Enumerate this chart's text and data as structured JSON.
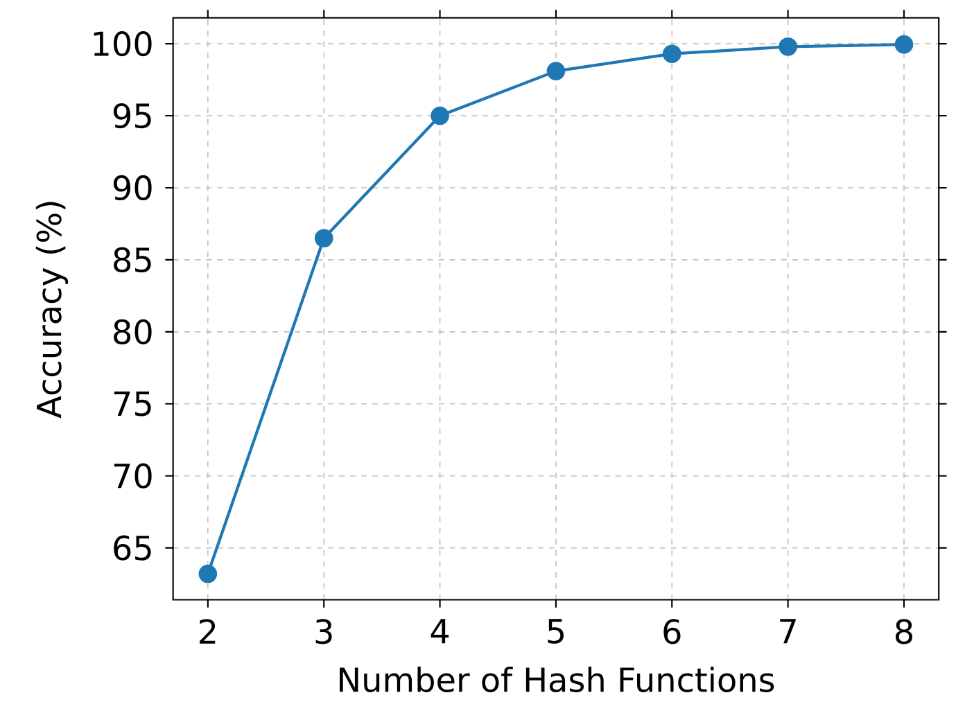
{
  "chart_data": {
    "type": "line",
    "xlabel": "Number of Hash Functions",
    "ylabel": "Accuracy (%)",
    "x": [
      2,
      3,
      4,
      5,
      6,
      7,
      8
    ],
    "series": [
      {
        "color": "#1f77b4",
        "values": [
          63.2,
          86.5,
          95.0,
          98.1,
          99.3,
          99.8,
          99.95
        ]
      }
    ],
    "xlim": [
      1.7,
      8.3
    ],
    "ylim": [
      61.4,
      101.8
    ],
    "xticks": [
      2,
      3,
      4,
      5,
      6,
      7,
      8
    ],
    "yticks": [
      65,
      70,
      75,
      80,
      85,
      90,
      95,
      100
    ],
    "grid": true,
    "marker": "circle",
    "line_style": "solid"
  }
}
